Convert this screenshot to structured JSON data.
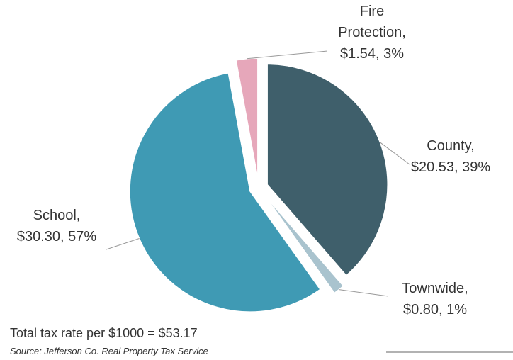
{
  "chart_data": {
    "type": "pie",
    "categories": [
      "County,",
      "Townwide,",
      "School,",
      "Fire Protection,"
    ],
    "values": [
      20.53,
      0.8,
      30.3,
      1.54
    ],
    "value_labels": [
      "$20.53, 39%",
      "$0.80, 1%",
      "$30.30, 57%",
      "$1.54, 3%"
    ],
    "colors": [
      "#3f5f6b",
      "#a9c3ce",
      "#3f9ab4",
      "#e6a7ba"
    ],
    "exploded": true,
    "annotations": [
      "Total tax rate per $1000 = $53.17"
    ],
    "source": "Source: Jefferson Co. Real Property Tax Service"
  }
}
